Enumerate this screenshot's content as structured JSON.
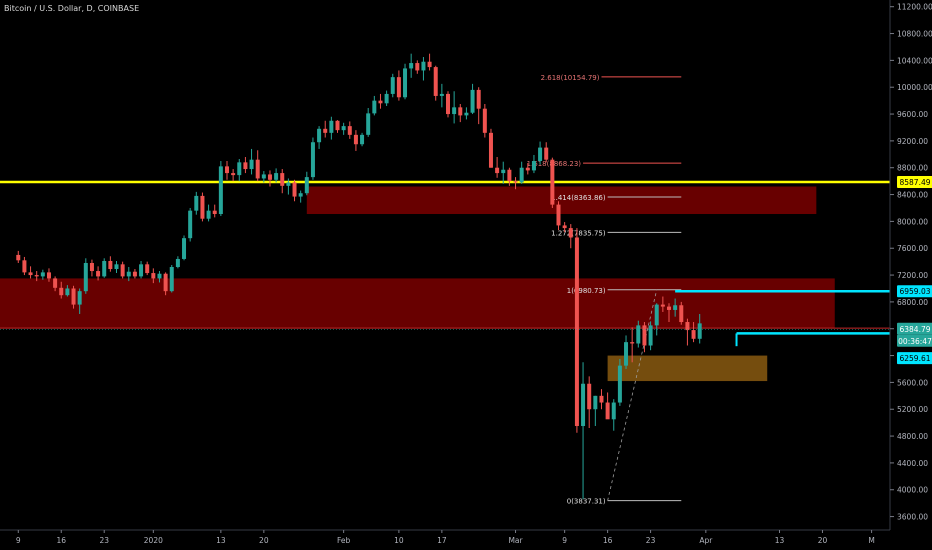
{
  "chart_data": {
    "type": "candlestick",
    "title": "Bitcoin / U.S. Dollar, D, COINBASE",
    "colors": {
      "background": "#000000",
      "up": "#26a69a",
      "down": "#ef5350",
      "support_line": "#ffff00",
      "target_line": "#00e5ff",
      "zone_red": "#7a0000",
      "zone_orange": "#8a5a10",
      "fib_line": "#9e9e9e"
    },
    "y_axis": {
      "ylim": [
        3400,
        11300
      ],
      "ticks": [
        "11200.00",
        "10800.00",
        "10400.00",
        "10000.00",
        "9600.00",
        "9200.00",
        "8800.00",
        "8400.00",
        "8000.00",
        "7600.00",
        "7200.00",
        "6800.00",
        "6400.00",
        "6000.00",
        "5600.00",
        "5200.00",
        "4800.00",
        "4400.00",
        "4000.00",
        "3600.00"
      ]
    },
    "x_axis": {
      "ticks": [
        "9",
        "16",
        "23",
        "2020",
        "13",
        "20",
        "Feb",
        "10",
        "17",
        "Mar",
        "9",
        "16",
        "23",
        "Apr",
        "13",
        "20",
        "M"
      ],
      "tick_index": [
        0,
        7,
        14,
        22,
        33,
        40,
        53,
        62,
        69,
        81,
        89,
        96,
        103,
        112,
        124,
        131,
        139
      ]
    },
    "candles": [
      [
        7500,
        7560,
        7380,
        7420
      ],
      [
        7420,
        7470,
        7200,
        7240
      ],
      [
        7240,
        7330,
        7150,
        7200
      ],
      [
        7200,
        7260,
        7110,
        7180
      ],
      [
        7180,
        7280,
        7130,
        7240
      ],
      [
        7240,
        7300,
        7100,
        7150
      ],
      [
        7150,
        7180,
        6960,
        7010
      ],
      [
        7010,
        7100,
        6850,
        6900
      ],
      [
        6900,
        7050,
        6880,
        7000
      ],
      [
        7000,
        7040,
        6700,
        6760
      ],
      [
        6760,
        7000,
        6620,
        6960
      ],
      [
        6960,
        7450,
        6920,
        7380
      ],
      [
        7380,
        7430,
        7180,
        7260
      ],
      [
        7260,
        7330,
        7120,
        7180
      ],
      [
        7180,
        7450,
        7160,
        7410
      ],
      [
        7410,
        7480,
        7250,
        7290
      ],
      [
        7290,
        7410,
        7230,
        7360
      ],
      [
        7360,
        7400,
        7150,
        7180
      ],
      [
        7180,
        7320,
        7110,
        7250
      ],
      [
        7250,
        7290,
        7150,
        7180
      ],
      [
        7180,
        7410,
        7150,
        7360
      ],
      [
        7360,
        7400,
        7200,
        7230
      ],
      [
        7230,
        7300,
        7080,
        7150
      ],
      [
        7150,
        7260,
        7090,
        7220
      ],
      [
        7220,
        7240,
        6900,
        6960
      ],
      [
        6960,
        7350,
        6940,
        7320
      ],
      [
        7320,
        7480,
        7300,
        7440
      ],
      [
        7440,
        7790,
        7420,
        7750
      ],
      [
        7750,
        8200,
        7700,
        8160
      ],
      [
        8160,
        8440,
        8100,
        8380
      ],
      [
        8380,
        8430,
        8000,
        8040
      ],
      [
        8040,
        8250,
        8000,
        8160
      ],
      [
        8160,
        8250,
        8060,
        8110
      ],
      [
        8110,
        8900,
        8080,
        8820
      ],
      [
        8820,
        8900,
        8620,
        8720
      ],
      [
        8720,
        8780,
        8600,
        8690
      ],
      [
        8690,
        8930,
        8600,
        8880
      ],
      [
        8880,
        8960,
        8720,
        8780
      ],
      [
        8780,
        9080,
        8700,
        8920
      ],
      [
        8920,
        9060,
        8600,
        8640
      ],
      [
        8640,
        8750,
        8580,
        8700
      ],
      [
        8700,
        8760,
        8520,
        8620
      ],
      [
        8620,
        8790,
        8580,
        8720
      ],
      [
        8720,
        8780,
        8420,
        8530
      ],
      [
        8530,
        8640,
        8400,
        8580
      ],
      [
        8580,
        8620,
        8300,
        8370
      ],
      [
        8370,
        8460,
        8280,
        8420
      ],
      [
        8420,
        8740,
        8390,
        8660
      ],
      [
        8660,
        9250,
        8620,
        9180
      ],
      [
        9180,
        9420,
        9080,
        9380
      ],
      [
        9380,
        9500,
        9250,
        9320
      ],
      [
        9320,
        9560,
        9220,
        9500
      ],
      [
        9500,
        9510,
        9320,
        9360
      ],
      [
        9360,
        9470,
        9290,
        9420
      ],
      [
        9420,
        9490,
        9230,
        9290
      ],
      [
        9290,
        9360,
        9050,
        9150
      ],
      [
        9150,
        9320,
        9120,
        9290
      ],
      [
        9290,
        9690,
        9260,
        9610
      ],
      [
        9610,
        9870,
        9580,
        9800
      ],
      [
        9800,
        9900,
        9680,
        9760
      ],
      [
        9760,
        9950,
        9720,
        9900
      ],
      [
        9900,
        10200,
        9850,
        10150
      ],
      [
        10150,
        10250,
        9800,
        9850
      ],
      [
        9850,
        10350,
        9820,
        10280
      ],
      [
        10280,
        10500,
        10140,
        10360
      ],
      [
        10360,
        10400,
        10200,
        10250
      ],
      [
        10250,
        10450,
        10100,
        10380
      ],
      [
        10380,
        10500,
        10250,
        10300
      ],
      [
        10300,
        10320,
        9800,
        9870
      ],
      [
        9870,
        10050,
        9700,
        9900
      ],
      [
        9900,
        9940,
        9550,
        9600
      ],
      [
        9600,
        9940,
        9460,
        9700
      ],
      [
        9700,
        9750,
        9480,
        9580
      ],
      [
        9580,
        9700,
        9520,
        9620
      ],
      [
        9620,
        10050,
        9600,
        9960
      ],
      [
        9960,
        10000,
        9450,
        9680
      ],
      [
        9680,
        9750,
        9250,
        9320
      ],
      [
        9320,
        9380,
        8800,
        8800
      ],
      [
        8800,
        8960,
        8650,
        8720
      ],
      [
        8720,
        8890,
        8560,
        8770
      ],
      [
        8770,
        8800,
        8530,
        8600
      ],
      [
        8600,
        8660,
        8480,
        8580
      ],
      [
        8580,
        8890,
        8560,
        8800
      ],
      [
        8800,
        8870,
        8700,
        8760
      ],
      [
        8760,
        8990,
        8720,
        8900
      ],
      [
        8900,
        9190,
        8850,
        9100
      ],
      [
        9100,
        9180,
        8880,
        8920
      ],
      [
        8920,
        8950,
        8200,
        8250
      ],
      [
        8250,
        8300,
        7870,
        7940
      ],
      [
        7940,
        7990,
        7840,
        7900
      ],
      [
        7900,
        7960,
        7600,
        7760
      ],
      [
        7760,
        7900,
        4850,
        4950
      ],
      [
        4950,
        5900,
        3860,
        5580
      ],
      [
        5580,
        5690,
        4920,
        5200
      ],
      [
        5200,
        5400,
        4950,
        5400
      ],
      [
        5400,
        5500,
        5200,
        5300
      ],
      [
        5300,
        5450,
        5070,
        5050
      ],
      [
        5050,
        5350,
        4880,
        5300
      ],
      [
        5300,
        5950,
        5250,
        5850
      ],
      [
        5850,
        6300,
        5800,
        6200
      ],
      [
        6200,
        6420,
        5900,
        6180
      ],
      [
        6180,
        6520,
        6120,
        6450
      ],
      [
        6450,
        6500,
        6050,
        6150
      ],
      [
        6150,
        6510,
        6080,
        6450
      ],
      [
        6450,
        6780,
        6300,
        6760
      ],
      [
        6760,
        6880,
        6650,
        6730
      ],
      [
        6730,
        6780,
        6500,
        6680
      ],
      [
        6680,
        6850,
        6580,
        6750
      ],
      [
        6750,
        6800,
        6460,
        6500
      ],
      [
        6500,
        6550,
        6150,
        6380
      ],
      [
        6380,
        6500,
        6200,
        6250
      ],
      [
        6250,
        6620,
        6180,
        6480
      ]
    ],
    "levels": [
      {
        "label": "8587.49",
        "value": 8587.49,
        "color": "#ffff00"
      },
      {
        "label": "6959.03",
        "value": 6959.03,
        "color": "#00e5ff"
      },
      {
        "label": "6384.79",
        "value": 6384.79,
        "color": "#26a69a"
      },
      {
        "label": "00:36:47",
        "value": 6300,
        "color": "#26a69a"
      },
      {
        "label": "6259.61",
        "value": 6259.61,
        "color": "#00e5ff"
      }
    ],
    "zones": [
      {
        "x0": -10,
        "x1": 133,
        "y0": 6410,
        "y1": 7150,
        "color": "zone_red"
      },
      {
        "x0": 47,
        "x1": 130,
        "y0": 8110,
        "y1": 8520,
        "color": "zone_red"
      },
      {
        "x0": 96,
        "x1": 122,
        "y0": 5620,
        "y1": 6000,
        "color": "zone_orange"
      }
    ],
    "fib_levels": [
      {
        "label": "2.618(10154.79)",
        "value": 10154.79,
        "x0": 95,
        "x1": 108,
        "color": "#ef5350"
      },
      {
        "label": "1.618(8868.23)",
        "value": 8868.23,
        "x0": 92,
        "x1": 108,
        "color": "#ef5350"
      },
      {
        "label": "1.414(8363.86)",
        "value": 8363.86,
        "x0": 96,
        "x1": 108,
        "color": "#bdbdbd"
      },
      {
        "label": "1.272(7835.75)",
        "value": 7835.75,
        "x0": 96,
        "x1": 108,
        "color": "#bdbdbd"
      },
      {
        "label": "1(6980.73)",
        "value": 6980.73,
        "x0": 96,
        "x1": 108,
        "color": "#bdbdbd"
      },
      {
        "label": "0(3837.31)",
        "value": 3837.31,
        "x0": 96,
        "x1": 108,
        "color": "#bdbdbd"
      }
    ],
    "x_count": 144,
    "x_offset": 2,
    "ray_start_index": 107,
    "pointer_index": 117
  }
}
